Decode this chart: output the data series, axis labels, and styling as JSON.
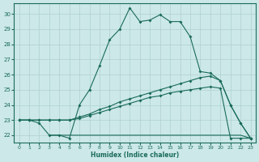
{
  "xlabel": "Humidex (Indice chaleur)",
  "xlim": [
    -0.5,
    23.5
  ],
  "ylim": [
    21.5,
    30.7
  ],
  "xticks": [
    0,
    1,
    2,
    3,
    4,
    5,
    6,
    7,
    8,
    9,
    10,
    11,
    12,
    13,
    14,
    15,
    16,
    17,
    18,
    19,
    20,
    21,
    22,
    23
  ],
  "yticks": [
    22,
    23,
    24,
    25,
    26,
    27,
    28,
    29,
    30
  ],
  "bg_color": "#cce8e8",
  "grid_color": "#b0d0d0",
  "line_color": "#1a6b5a",
  "line1_x": [
    0,
    1,
    2,
    3,
    4,
    5,
    6,
    7,
    8,
    9,
    10,
    11,
    12,
    13,
    14,
    15,
    16,
    17,
    18,
    19,
    20,
    21,
    22,
    23
  ],
  "line1_y": [
    23.0,
    23.0,
    22.8,
    22.0,
    22.0,
    21.8,
    24.0,
    25.0,
    26.6,
    28.3,
    29.0,
    30.4,
    29.5,
    29.6,
    29.95,
    29.5,
    29.5,
    28.5,
    26.2,
    26.1,
    25.6,
    24.0,
    22.8,
    21.8
  ],
  "line2_x": [
    0,
    1,
    2,
    3,
    4,
    5,
    6,
    7,
    8,
    9,
    10,
    11,
    12,
    13,
    14,
    15,
    16,
    17,
    18,
    19,
    20,
    21,
    22,
    23
  ],
  "line2_y": [
    23.0,
    23.0,
    23.0,
    23.0,
    23.0,
    23.0,
    23.2,
    23.4,
    23.7,
    23.9,
    24.2,
    24.4,
    24.6,
    24.8,
    25.0,
    25.2,
    25.4,
    25.6,
    25.8,
    25.9,
    25.6,
    24.0,
    22.8,
    21.8
  ],
  "line3_x": [
    0,
    1,
    2,
    3,
    4,
    5,
    6,
    7,
    8,
    9,
    10,
    11,
    12,
    13,
    14,
    15,
    16,
    17,
    18,
    19,
    20,
    21,
    22,
    23
  ],
  "line3_y": [
    23.0,
    23.0,
    23.0,
    23.0,
    23.0,
    23.0,
    23.1,
    23.3,
    23.5,
    23.7,
    23.9,
    24.1,
    24.3,
    24.5,
    24.6,
    24.8,
    24.9,
    25.0,
    25.1,
    25.2,
    25.1,
    21.8,
    21.8,
    21.8
  ],
  "line4_x": [
    3,
    4,
    5,
    6,
    7,
    8,
    9,
    10,
    11,
    12,
    13,
    14,
    15,
    16,
    17,
    18,
    19,
    20,
    21,
    22,
    23
  ],
  "line4_y": [
    22.0,
    22.0,
    22.0,
    22.0,
    22.0,
    22.0,
    22.0,
    22.0,
    22.0,
    22.0,
    22.0,
    22.0,
    22.0,
    22.0,
    22.0,
    22.0,
    22.0,
    22.0,
    22.0,
    22.0,
    21.8
  ]
}
